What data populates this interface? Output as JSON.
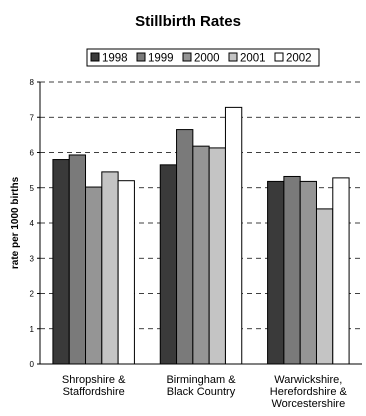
{
  "chart_data": {
    "type": "bar",
    "title": "Stillbirth Rates",
    "xlabel": "",
    "ylabel": "rate per 1000 births",
    "ylim": [
      0,
      8
    ],
    "yticks": [
      "0",
      "1",
      "2",
      "3",
      "4",
      "5",
      "6",
      "7",
      "8"
    ],
    "grid": true,
    "legend_position": "top",
    "categories": [
      [
        "Shropshire &",
        "Staffordshire"
      ],
      [
        "Birmingham &",
        "Black Country"
      ],
      [
        "Warwickshire,",
        "Herefordshire &",
        "Worcestershire"
      ]
    ],
    "series": [
      {
        "name": "1998",
        "color": "#3a3a3a",
        "values": [
          5.8,
          5.65,
          5.18
        ]
      },
      {
        "name": "1999",
        "color": "#7a7a7a",
        "values": [
          5.93,
          6.65,
          5.32
        ]
      },
      {
        "name": "2000",
        "color": "#959595",
        "values": [
          5.02,
          6.18,
          5.18
        ]
      },
      {
        "name": "2001",
        "color": "#c4c4c4",
        "values": [
          5.45,
          6.13,
          4.4
        ]
      },
      {
        "name": "2002",
        "color": "#ffffff",
        "values": [
          5.2,
          7.28,
          5.28
        ]
      }
    ]
  }
}
